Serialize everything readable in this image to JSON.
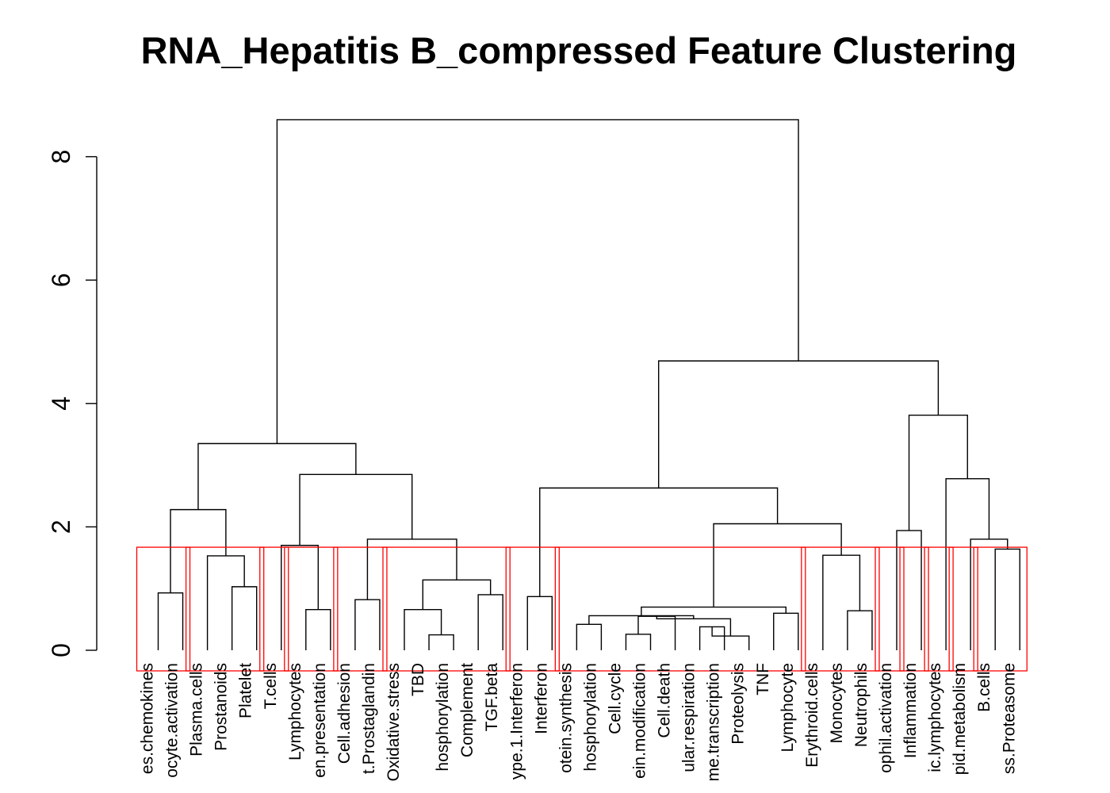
{
  "chart_data": {
    "type": "dendrogram",
    "title": "RNA_Hepatitis B_compressed Feature Clustering",
    "xlabel": "",
    "ylabel": "",
    "ylim": [
      0,
      8.6
    ],
    "yticks": [
      0,
      2,
      4,
      6,
      8
    ],
    "leaves": [
      "es.chemokines",
      "ocyte.activation",
      "Plasma.cells",
      "Prostanoids",
      "Platelet",
      "T.cells",
      "Lymphocytes",
      "en.presentation",
      "Cell.adhesion",
      "t.Prostaglandin",
      "Oxidative.stress",
      "TBD",
      "hosphorylation",
      "Complement",
      "TGF.beta",
      "ype.1.Interferon",
      "Interferon",
      "otein.synthesis",
      "hosphorylation",
      "Cell.cycle",
      "ein.modification",
      "Cell.death",
      "ular.respiration",
      "me.transcription",
      "Proteolysis",
      "TNF",
      "Lymphocyte",
      "Erythroid.cells",
      "Monocytes",
      "Neutrophils",
      "ophil.activation",
      "Inflammation",
      "ic.lymphocytes",
      "pid.metabolism",
      "B.cells",
      "ss.Proteasome"
    ],
    "merges": [
      {
        "left": "L0",
        "right": "L1",
        "height": 0.93
      },
      {
        "left": "L3",
        "right": "L4",
        "height": 1.03
      },
      {
        "left": "L2",
        "right": "N1",
        "height": 1.53
      },
      {
        "left": "N0",
        "right": "N2",
        "height": 2.28
      },
      {
        "left": "L6",
        "right": "L7",
        "height": 0.66
      },
      {
        "left": "L5",
        "right": "N4",
        "height": 1.7
      },
      {
        "left": "L8",
        "right": "L9",
        "height": 0.82
      },
      {
        "left": "L11",
        "right": "L12",
        "height": 0.25
      },
      {
        "left": "L10",
        "right": "N7",
        "height": 0.66
      },
      {
        "left": "L13",
        "right": "L14",
        "height": 0.9
      },
      {
        "left": "N8",
        "right": "N9",
        "height": 1.14
      },
      {
        "left": "N6",
        "right": "N10",
        "height": 1.8
      },
      {
        "left": "N5",
        "right": "N11",
        "height": 2.85
      },
      {
        "left": "N3",
        "right": "N12",
        "height": 3.35
      },
      {
        "left": "L15",
        "right": "L16",
        "height": 0.87
      },
      {
        "left": "L17",
        "right": "L18",
        "height": 0.42
      },
      {
        "left": "L19",
        "right": "L20",
        "height": 0.26
      },
      {
        "left": "N16",
        "right": "L21",
        "height": 0.55
      },
      {
        "left": "L22",
        "right": "L23",
        "height": 0.38
      },
      {
        "left": "N18",
        "right": "L24",
        "height": 0.23
      },
      {
        "left": "N17",
        "right": "N19",
        "height": 0.51
      },
      {
        "left": "N15",
        "right": "N20",
        "height": 0.56
      },
      {
        "left": "L25",
        "right": "L26",
        "height": 0.6
      },
      {
        "left": "N21",
        "right": "N22",
        "height": 0.7
      },
      {
        "left": "L28",
        "right": "L29",
        "height": 0.64
      },
      {
        "left": "L27",
        "right": "N24",
        "height": 1.54
      },
      {
        "left": "N23",
        "right": "N25",
        "height": 2.05
      },
      {
        "left": "N14",
        "right": "N26",
        "height": 2.63
      },
      {
        "left": "L30",
        "right": "L31",
        "height": 1.94
      },
      {
        "left": "L34",
        "right": "L35",
        "height": 1.64
      },
      {
        "left": "L33",
        "right": "N29",
        "height": 1.8
      },
      {
        "left": "L32",
        "right": "N30",
        "height": 2.78
      },
      {
        "left": "N28",
        "right": "N31",
        "height": 3.81
      },
      {
        "left": "N27",
        "right": "N32",
        "height": 4.69
      },
      {
        "left": "N13",
        "right": "N33",
        "height": 8.6
      }
    ],
    "cluster_cut_height": 1.67,
    "clusters": [
      [
        0,
        1
      ],
      [
        2,
        4
      ],
      [
        5,
        5
      ],
      [
        6,
        7
      ],
      [
        8,
        9
      ],
      [
        10,
        14
      ],
      [
        15,
        16
      ],
      [
        17,
        26
      ],
      [
        27,
        29
      ],
      [
        30,
        30
      ],
      [
        31,
        31
      ],
      [
        32,
        32
      ],
      [
        33,
        33
      ],
      [
        34,
        35
      ]
    ],
    "colors": {
      "branch": "#000000",
      "cluster_box": "#ff0000",
      "background": "#ffffff"
    }
  }
}
